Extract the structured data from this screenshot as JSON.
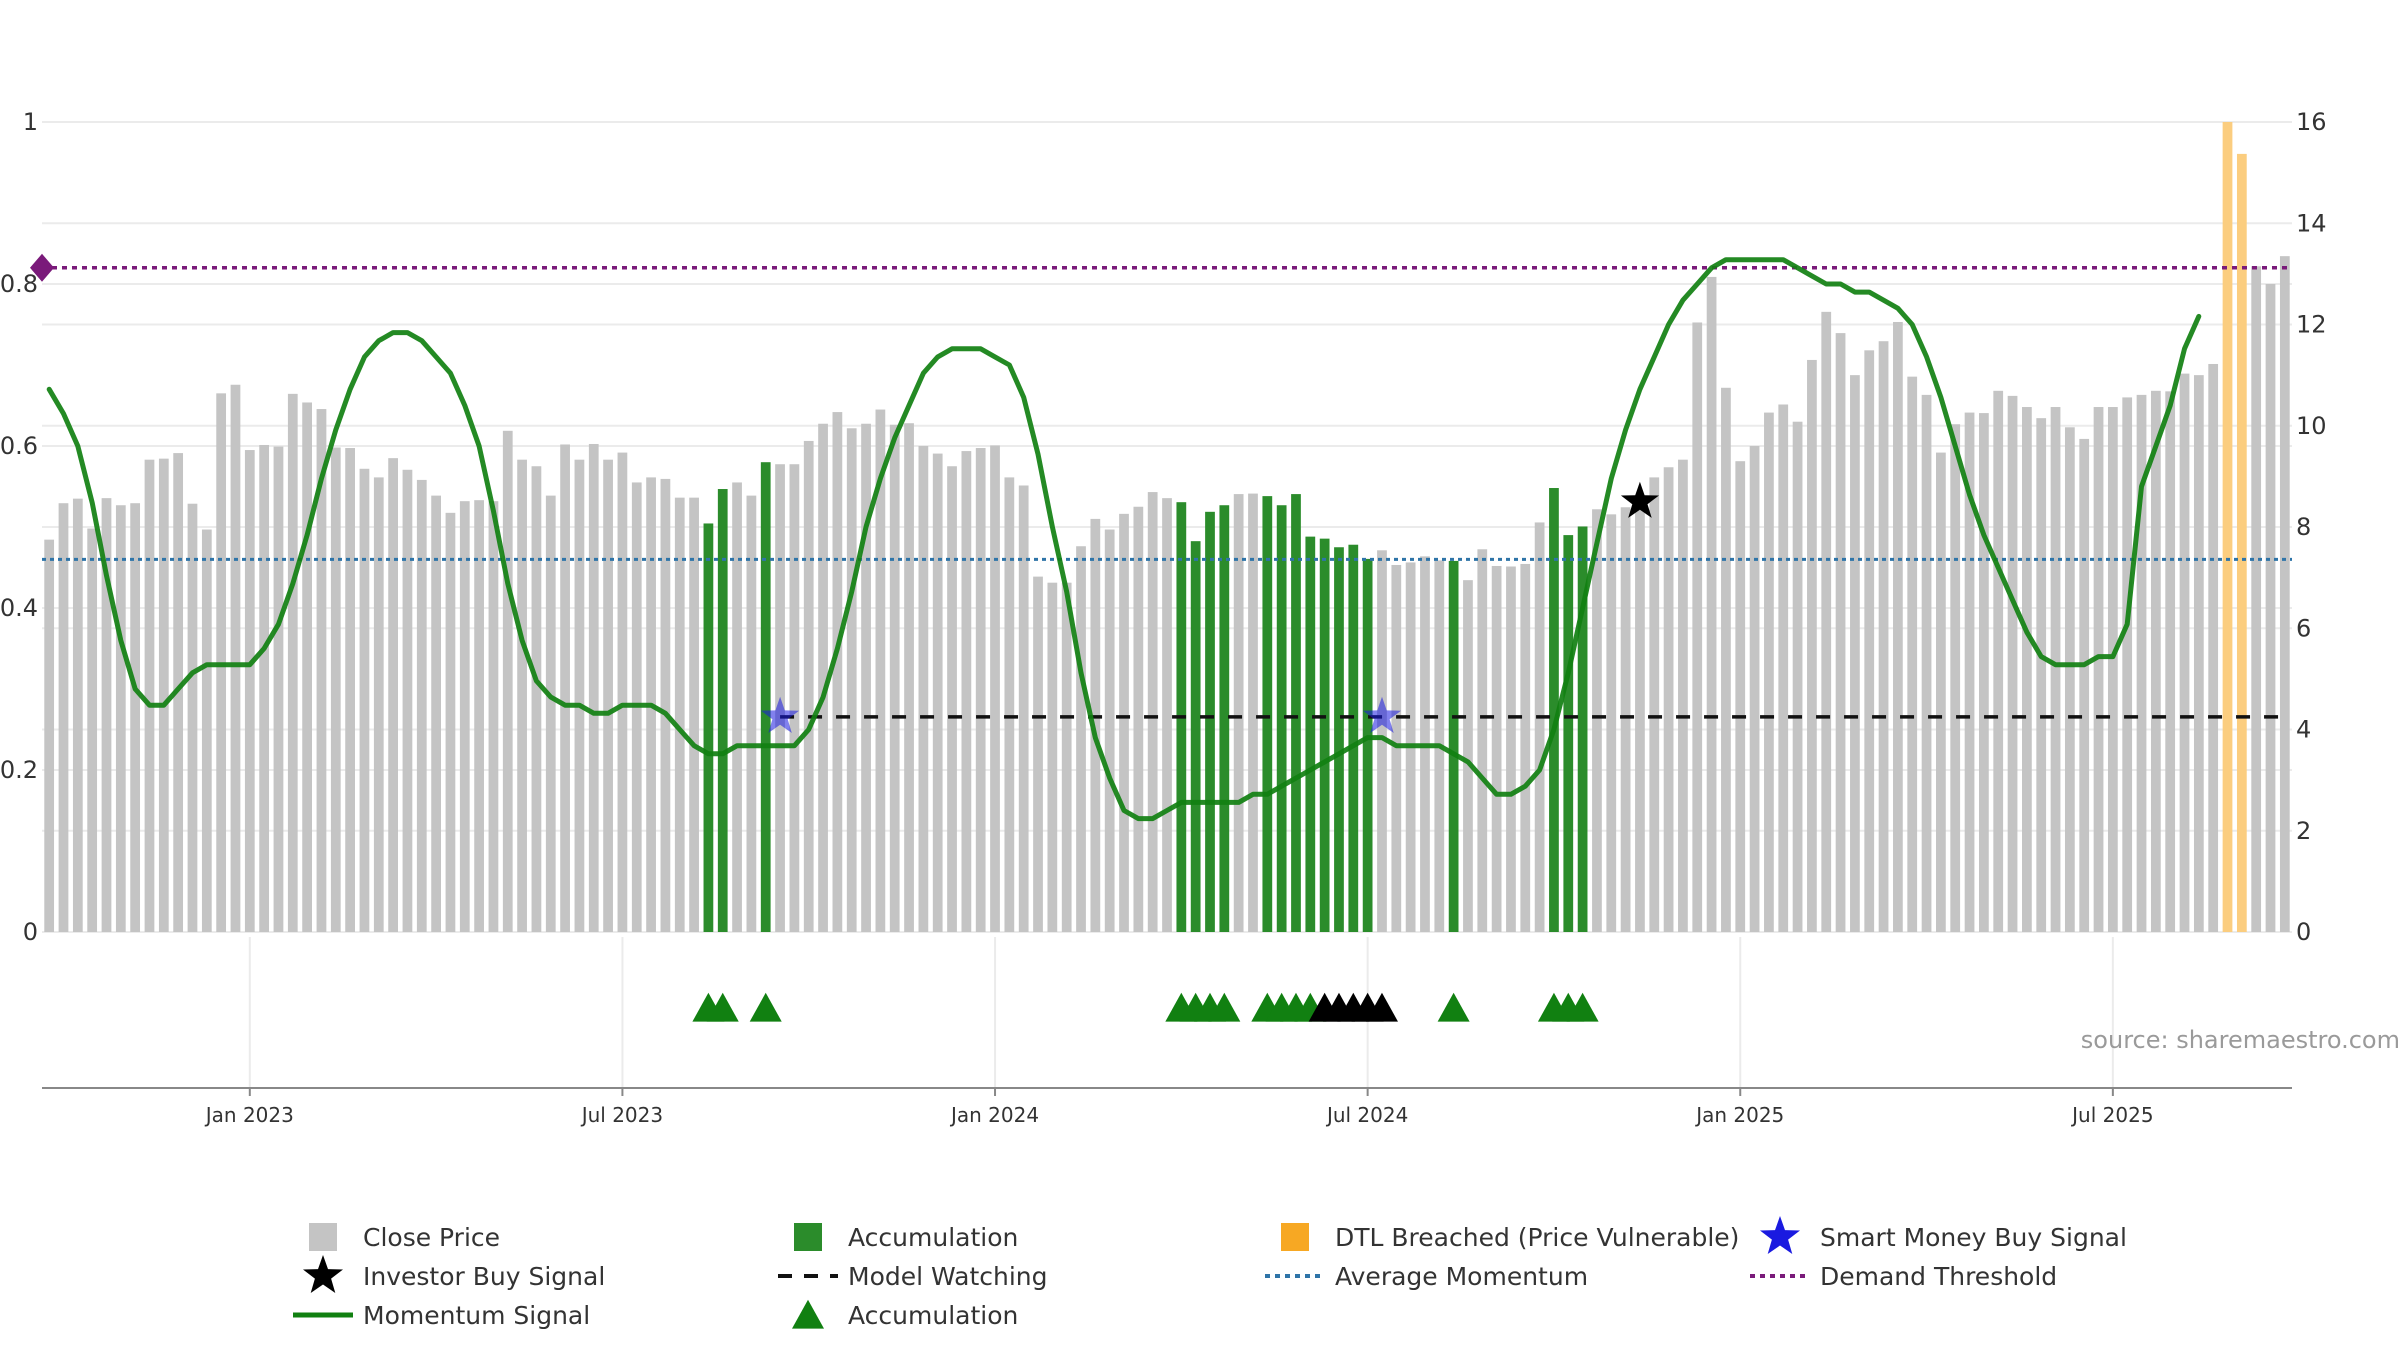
{
  "chart_data": {
    "type": "bar",
    "title": "",
    "source": "source: sharemaestro.com",
    "left_axis": {
      "ticks": [
        "0",
        "0.2",
        "0.4",
        "0.6",
        "0.8",
        "1"
      ],
      "ylim": [
        0,
        1
      ]
    },
    "right_axis": {
      "ticks": [
        "0",
        "2",
        "4",
        "6",
        "8",
        "10",
        "12",
        "14",
        "16"
      ],
      "ylim": [
        0,
        16
      ]
    },
    "x_ticks": [
      "Jan 2023",
      "Jul 2023",
      "Jan 2024",
      "Jul 2024",
      "Jan 2025",
      "Jul 2025"
    ],
    "x_tick_indices": [
      14.5,
      40.5,
      66.5,
      92.5,
      118.5,
      144.5
    ],
    "n_bars": 157,
    "close_price": [
      7.75,
      8.47,
      8.56,
      7.97,
      8.57,
      8.43,
      8.47,
      9.33,
      9.35,
      9.46,
      8.46,
      7.95,
      10.64,
      10.81,
      9.52,
      9.62,
      9.59,
      10.63,
      10.46,
      10.33,
      9.57,
      9.56,
      9.15,
      8.98,
      9.36,
      9.13,
      8.93,
      8.62,
      8.28,
      8.51,
      8.53,
      8.51,
      9.9,
      9.33,
      9.2,
      8.62,
      9.63,
      9.33,
      9.64,
      9.33,
      9.47,
      8.88,
      8.98,
      8.95,
      8.58,
      8.58,
      8.07,
      8.75,
      8.88,
      8.62,
      9.28,
      9.24,
      9.24,
      9.7,
      10.04,
      10.27,
      9.95,
      10.04,
      10.32,
      10.02,
      10.05,
      9.6,
      9.45,
      9.2,
      9.5,
      9.56,
      9.61,
      8.98,
      8.82,
      7.02,
      6.9,
      6.9,
      7.62,
      8.16,
      7.95,
      8.26,
      8.4,
      8.69,
      8.57,
      8.49,
      7.72,
      8.3,
      8.43,
      8.65,
      8.66,
      8.61,
      8.43,
      8.65,
      7.81,
      7.77,
      7.6,
      7.65,
      7.37,
      7.54,
      7.25,
      7.3,
      7.42,
      7.34,
      7.33,
      6.95,
      7.56,
      7.23,
      7.22,
      7.27,
      8.09,
      8.77,
      7.84,
      8.01,
      8.35,
      8.25,
      8.39,
      8.47,
      8.98,
      9.18,
      9.33,
      12.04,
      12.94,
      10.75,
      9.3,
      9.6,
      10.26,
      10.42,
      10.08,
      11.3,
      12.25,
      11.83,
      11.0,
      11.49,
      11.67,
      12.05,
      10.97,
      10.61,
      9.47,
      10.03,
      10.26,
      10.25,
      10.69,
      10.59,
      10.37,
      10.15,
      10.37,
      9.97,
      9.74,
      10.37,
      10.37,
      10.56,
      10.61,
      10.69,
      10.68,
      11.03,
      11.0,
      11.22,
      16.0,
      15.37,
      13.15,
      12.8,
      13.35
    ],
    "accumulation_bar_indices": [
      46,
      47,
      50,
      79,
      80,
      81,
      82,
      85,
      86,
      87,
      88,
      89,
      90,
      91,
      92,
      98,
      105,
      106,
      107
    ],
    "dtl_breached_bar_indices": [
      152,
      153
    ],
    "momentum_signal": [
      0.67,
      0.64,
      0.6,
      0.53,
      0.44,
      0.36,
      0.3,
      0.28,
      0.28,
      0.3,
      0.32,
      0.33,
      0.33,
      0.33,
      0.33,
      0.35,
      0.38,
      0.43,
      0.49,
      0.56,
      0.62,
      0.67,
      0.71,
      0.73,
      0.74,
      0.74,
      0.73,
      0.71,
      0.69,
      0.65,
      0.6,
      0.52,
      0.43,
      0.36,
      0.31,
      0.29,
      0.28,
      0.28,
      0.27,
      0.27,
      0.28,
      0.28,
      0.28,
      0.27,
      0.25,
      0.23,
      0.22,
      0.22,
      0.23,
      0.23,
      0.23,
      0.23,
      0.23,
      0.25,
      0.29,
      0.35,
      0.42,
      0.5,
      0.56,
      0.61,
      0.65,
      0.69,
      0.71,
      0.72,
      0.72,
      0.72,
      0.71,
      0.7,
      0.66,
      0.59,
      0.5,
      0.42,
      0.32,
      0.24,
      0.19,
      0.15,
      0.14,
      0.14,
      0.15,
      0.16,
      0.16,
      0.16,
      0.16,
      0.16,
      0.17,
      0.17,
      0.18,
      0.19,
      0.2,
      0.21,
      0.22,
      0.23,
      0.24,
      0.24,
      0.23,
      0.23,
      0.23,
      0.23,
      0.22,
      0.21,
      0.19,
      0.17,
      0.17,
      0.18,
      0.2,
      0.25,
      0.32,
      0.4,
      0.48,
      0.56,
      0.62,
      0.67,
      0.71,
      0.75,
      0.78,
      0.8,
      0.82,
      0.83,
      0.83,
      0.83,
      0.83,
      0.83,
      0.82,
      0.81,
      0.8,
      0.8,
      0.79,
      0.79,
      0.78,
      0.77,
      0.75,
      0.71,
      0.66,
      0.6,
      0.54,
      0.49,
      0.45,
      0.41,
      0.37,
      0.34,
      0.33,
      0.33,
      0.33,
      0.34,
      0.34,
      0.38,
      0.55,
      0.6,
      0.65,
      0.72,
      0.76
    ],
    "average_momentum": 0.46,
    "demand_threshold": 0.82,
    "model_watching": {
      "value": 4.25,
      "from_index": 51,
      "to_index": 156
    },
    "smart_money_buy_signals": [
      {
        "index": 51,
        "value": 4.25
      },
      {
        "index": 93,
        "value": 4.25
      }
    ],
    "investor_buy_signals": [
      {
        "index": 111,
        "value": 8.5
      }
    ],
    "accumulation_markers_green": [
      46,
      47,
      50,
      79,
      80,
      81,
      82,
      85,
      86,
      87,
      88,
      98,
      105,
      106,
      107
    ],
    "accumulation_markers_black": [
      89,
      90,
      91,
      92,
      93
    ],
    "legend": [
      {
        "label": "Close Price",
        "icon": "gray-square"
      },
      {
        "label": "Accumulation",
        "icon": "green-square"
      },
      {
        "label": "DTL Breached (Price Vulnerable)",
        "icon": "orange-square"
      },
      {
        "label": "Smart Money Buy Signal",
        "icon": "blue-star"
      },
      {
        "label": "Investor Buy Signal",
        "icon": "black-star"
      },
      {
        "label": "Model Watching",
        "icon": "black-dash"
      },
      {
        "label": "Average Momentum",
        "icon": "blue-dotted-line"
      },
      {
        "label": "Demand Threshold",
        "icon": "purple-dotted-line"
      },
      {
        "label": "Momentum Signal",
        "icon": "green-line"
      },
      {
        "label": "Accumulation",
        "icon": "green-triangle"
      }
    ],
    "colors": {
      "close_price": "#c4c4c4",
      "accumulation": "#2b8c2b",
      "dtl_breached": "#fbcd7f",
      "momentum": "#118011",
      "average_momentum": "#2e74a8",
      "demand_threshold": "#7a1a7a",
      "smart_money": "#1a1ae0",
      "investor": "#000000",
      "grid": "#ebebeb"
    }
  }
}
